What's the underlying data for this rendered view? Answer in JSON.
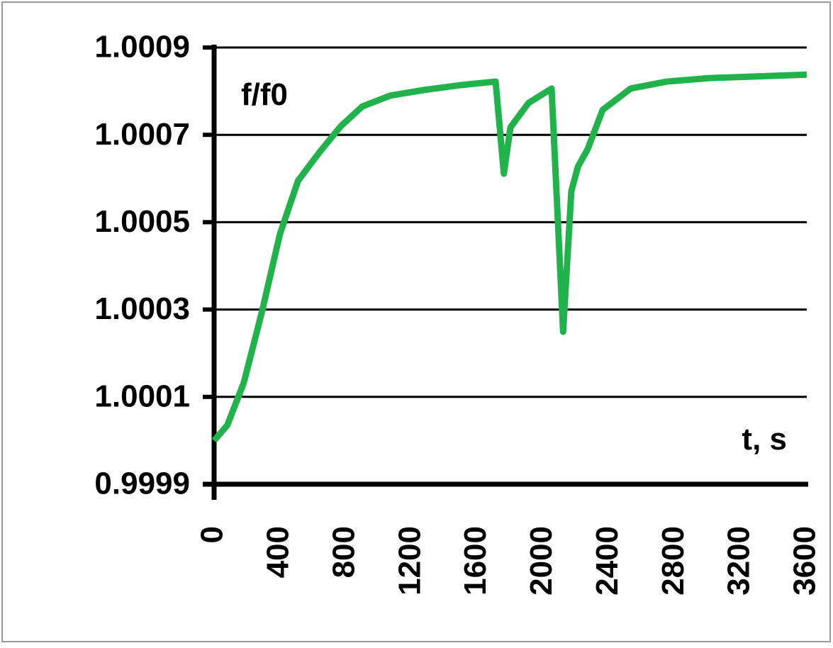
{
  "chart_data": {
    "type": "line",
    "y_label": "f/f0",
    "x_label": "t, s",
    "x": [
      0,
      80,
      180,
      290,
      400,
      510,
      640,
      770,
      900,
      1070,
      1280,
      1500,
      1710,
      1760,
      1800,
      1910,
      2050,
      2120,
      2170,
      2210,
      2270,
      2360,
      2530,
      2750,
      3010,
      3600
    ],
    "values": [
      1.0,
      1.000035,
      1.000132,
      1.000294,
      1.000473,
      1.000595,
      1.00066,
      1.00072,
      1.000765,
      1.00079,
      1.000803,
      1.000814,
      1.000822,
      1.000611,
      1.000717,
      1.000773,
      1.000806,
      1.000249,
      1.000571,
      1.000627,
      1.000668,
      1.000757,
      1.000806,
      1.000822,
      1.00083,
      1.000838
    ],
    "color": "#22b24c",
    "xlim": [
      0,
      3600
    ],
    "xticks": [
      0,
      400,
      800,
      1200,
      1600,
      2000,
      2400,
      2800,
      3200,
      3600
    ],
    "ylim": [
      0.9999,
      1.0009
    ],
    "yticks": [
      0.9999,
      1.0001,
      1.0003,
      1.0005,
      1.0007,
      1.0009
    ],
    "grid": true
  }
}
